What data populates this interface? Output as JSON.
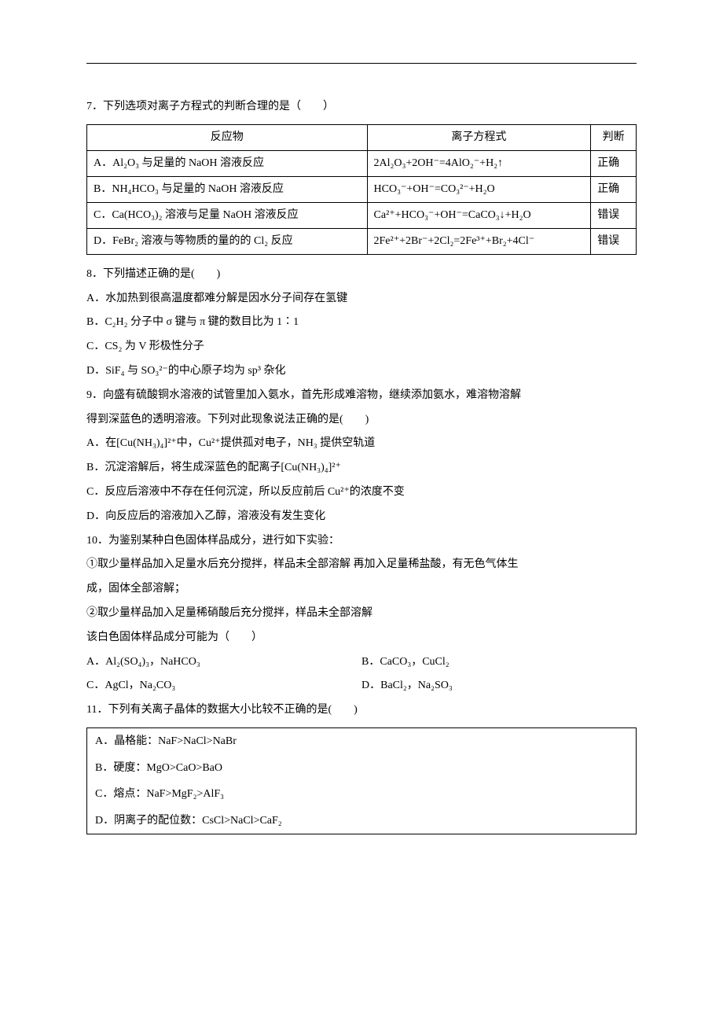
{
  "q7": {
    "stem": "7．下列选项对离子方程式的判断合理的是（　　）",
    "headers": {
      "c1": "反应物",
      "c2": "离子方程式",
      "c3": "判断"
    },
    "rows": [
      {
        "reactant": "A．Al₂O₃ 与足量的 NaOH 溶液反应",
        "eq": "2Al₂O₃+2OH⁻=4AlO₂⁻+H₂↑",
        "judge": "正确"
      },
      {
        "reactant": "B．NH₄HCO₃ 与足量的 NaOH 溶液反应",
        "eq": "HCO₃⁻+OH⁻=CO₃²⁻+H₂O",
        "judge": "正确"
      },
      {
        "reactant": "C．Ca(HCO₃)₂ 溶液与足量 NaOH 溶液反应",
        "eq": "Ca²⁺+HCO₃⁻+OH⁻=CaCO₃↓+H₂O",
        "judge": "错误"
      },
      {
        "reactant": "D．FeBr₂ 溶液与等物质的量的的 Cl₂ 反应",
        "eq": "2Fe²⁺+2Br⁻+2Cl₂=2Fe³⁺+Br₂+4Cl⁻",
        "judge": "错误"
      }
    ]
  },
  "q8": {
    "stem": "8．下列描述正确的是(　　)",
    "A": "A．水加热到很高温度都难分解是因水分子间存在氢键",
    "B": "B．C₂H₂ 分子中 σ 键与 π 键的数目比为 1∶1",
    "C": "C．CS₂ 为 V 形极性分子",
    "D": "D．SiF₄ 与 SO₃²⁻的中心原子均为 sp³ 杂化"
  },
  "q9": {
    "stem1": "9．向盛有硫酸铜水溶液的试管里加入氨水，首先形成难溶物，继续添加氨水，难溶物溶解",
    "stem2": "得到深蓝色的透明溶液。下列对此现象说法正确的是(　　)",
    "A": "A．在[Cu(NH₃)₄]²⁺中，Cu²⁺提供孤对电子，NH₃ 提供空轨道",
    "B": "B．沉淀溶解后，将生成深蓝色的配离子[Cu(NH₃)₄]²⁺",
    "C": "C．反应后溶液中不存在任何沉淀，所以反应前后 Cu²⁺的浓度不变",
    "D": "D．向反应后的溶液加入乙醇，溶液没有发生变化"
  },
  "q10": {
    "stem": "10．为鉴别某种白色固体样品成分，进行如下实验：",
    "line1": "①取少量样品加入足量水后充分搅拌，样品未全部溶解 再加入足量稀盐酸，有无色气体生",
    "line2": "成，固体全部溶解；",
    "line3": "②取少量样品加入足量稀硝酸后充分搅拌，样品未全部溶解",
    "line4": "该白色固体样品成分可能为（　　）",
    "A": "A．Al₂(SO₄)₃，NaHCO₃",
    "B": "B．CaCO₃，CuCl₂",
    "C": "C．AgCl，Na₂CO₃",
    "D": "D．BaCl₂，Na₂SO₃"
  },
  "q11": {
    "stem": "11．下列有关离子晶体的数据大小比较不正确的是(　　)",
    "A": "A．晶格能：NaF>NaCl>NaBr",
    "B": "B．硬度：MgO>CaO>BaO",
    "C": "C．熔点：NaF>MgF₂>AlF₃",
    "D": "D．阴离子的配位数：CsCl>NaCl>CaF₂"
  }
}
